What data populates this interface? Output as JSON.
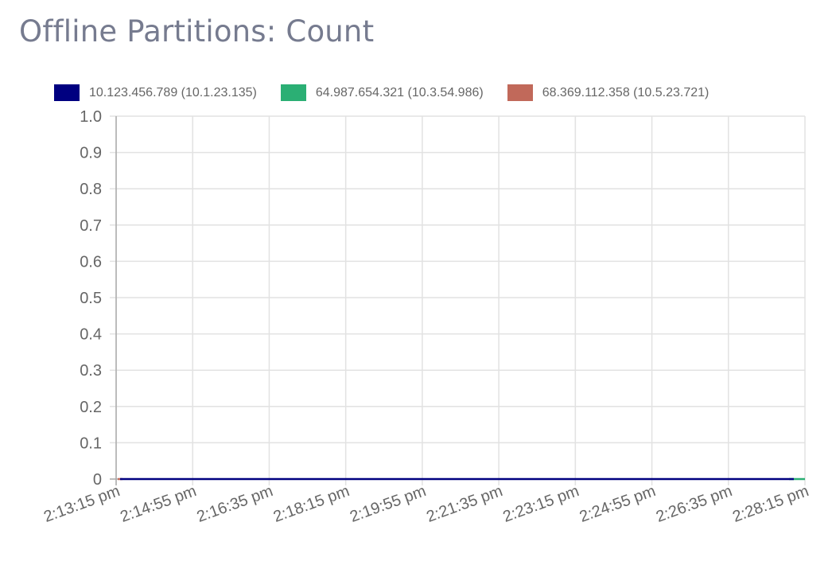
{
  "header": {
    "title": "Offline Partitions: Count"
  },
  "legend": {
    "items": [
      {
        "label": "10.123.456.789 (10.1.23.135)",
        "color": "#000080"
      },
      {
        "label": "64.987.654.321 (10.3.54.986)",
        "color": "#2baf74"
      },
      {
        "label": "68.369.112.358 (10.5.23.721)",
        "color": "#c1695a"
      }
    ]
  },
  "chart_data": {
    "type": "line",
    "title": "Offline Partitions: Count",
    "xlabel": "",
    "ylabel": "",
    "ylim": [
      0,
      1.0
    ],
    "y_ticks": [
      "1.0",
      "0.9",
      "0.8",
      "0.7",
      "0.6",
      "0.5",
      "0.4",
      "0.3",
      "0.2",
      "0.1",
      "0"
    ],
    "x_ticks": [
      "2:13:15 pm",
      "2:14:55 pm",
      "2:16:35 pm",
      "2:18:15 pm",
      "2:19:55 pm",
      "2:21:35 pm",
      "2:23:15 pm",
      "2:24:55 pm",
      "2:26:35 pm",
      "2:28:15 pm"
    ],
    "grid": true,
    "legend_position": "top",
    "series": [
      {
        "name": "10.123.456.789 (10.1.23.135)",
        "color": "#000080",
        "values": [
          0,
          0,
          0,
          0,
          0,
          0,
          0,
          0,
          0,
          0
        ]
      },
      {
        "name": "64.987.654.321 (10.3.54.986)",
        "color": "#2baf74",
        "values": [
          0,
          0,
          0,
          0,
          0,
          0,
          0,
          0,
          0,
          0
        ]
      },
      {
        "name": "68.369.112.358 (10.5.23.721)",
        "color": "#c1695a",
        "values": [
          0,
          0,
          0,
          0,
          0,
          0,
          0,
          0,
          0,
          0
        ]
      }
    ]
  }
}
